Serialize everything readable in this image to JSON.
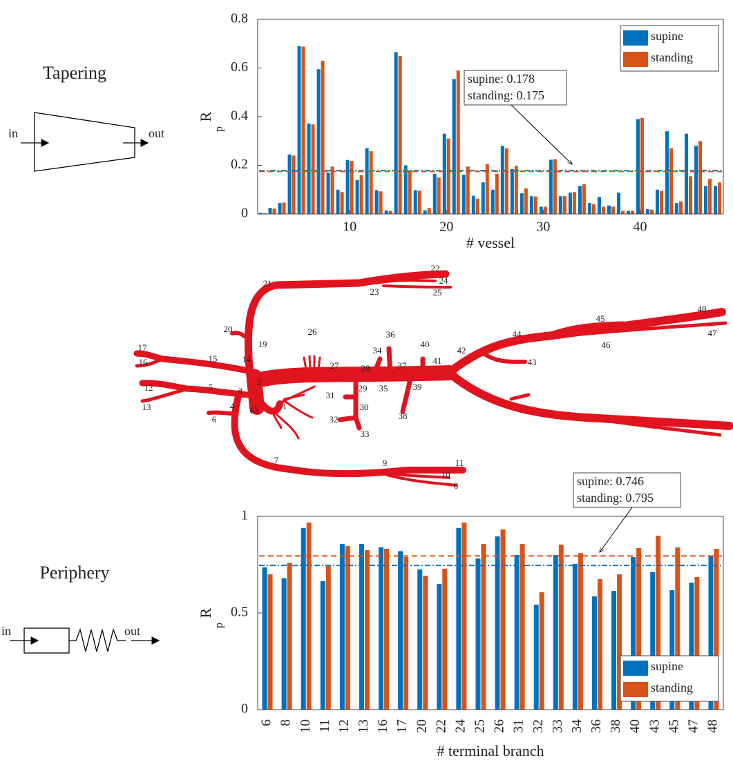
{
  "chart_data": [
    {
      "type": "bar",
      "ylabel": "R",
      "ylabel_sub": "p",
      "xlabel": "# vessel",
      "x": [
        1,
        2,
        3,
        4,
        5,
        6,
        7,
        8,
        9,
        10,
        11,
        12,
        13,
        14,
        15,
        16,
        17,
        18,
        19,
        20,
        21,
        22,
        23,
        24,
        25,
        26,
        27,
        28,
        29,
        30,
        31,
        32,
        33,
        34,
        35,
        36,
        37,
        38,
        39,
        40,
        41,
        42,
        43,
        44,
        45,
        46,
        47,
        48
      ],
      "xlim": [
        0.5,
        48.6
      ],
      "xticks": [
        10,
        20,
        30,
        40
      ],
      "ylim": [
        0,
        0.8
      ],
      "yticks": [
        0,
        0.2,
        0.4,
        0.6,
        0.8
      ],
      "legend": "upper right",
      "series": [
        {
          "name": "supine",
          "color": "#0072bd",
          "mean": 0.178,
          "values": [
            0.005,
            0.025,
            0.045,
            0.245,
            0.69,
            0.372,
            0.595,
            0.17,
            0.1,
            0.222,
            0.14,
            0.27,
            0.098,
            0.015,
            0.665,
            0.2,
            0.098,
            0.015,
            0.165,
            0.33,
            0.555,
            0.162,
            0.075,
            0.13,
            0.1,
            0.28,
            0.185,
            0.085,
            0.073,
            0.03,
            0.223,
            0.073,
            0.088,
            0.115,
            0.045,
            0.07,
            0.035,
            0.088,
            0.013,
            0.39,
            0.02,
            0.1,
            0.34,
            0.045,
            0.33,
            0.28,
            0.115,
            0.115
          ]
        },
        {
          "name": "standing",
          "color": "#d95319",
          "mean": 0.175,
          "values": [
            0.003,
            0.022,
            0.047,
            0.24,
            0.688,
            0.368,
            0.63,
            0.195,
            0.09,
            0.218,
            0.16,
            0.258,
            0.093,
            0.013,
            0.65,
            0.18,
            0.096,
            0.025,
            0.15,
            0.31,
            0.59,
            0.195,
            0.063,
            0.205,
            0.165,
            0.27,
            0.198,
            0.105,
            0.072,
            0.03,
            0.225,
            0.073,
            0.09,
            0.122,
            0.04,
            0.03,
            0.03,
            0.013,
            0.013,
            0.395,
            0.018,
            0.095,
            0.27,
            0.052,
            0.155,
            0.3,
            0.145,
            0.13
          ]
        }
      ],
      "annotation": [
        "supine: 0.178",
        "standing: 0.175"
      ]
    },
    {
      "type": "bar",
      "ylabel": "R",
      "ylabel_sub": "p",
      "xlabel": "# terminal branch",
      "categories": [
        "6",
        "8",
        "10",
        "11",
        "12",
        "13",
        "16",
        "17",
        "20",
        "22",
        "24",
        "25",
        "26",
        "31",
        "32",
        "33",
        "34",
        "36",
        "38",
        "40",
        "43",
        "45",
        "47",
        "48"
      ],
      "ylim": [
        0,
        1
      ],
      "yticks": [
        0,
        0.5,
        1
      ],
      "legend": "lower right",
      "series": [
        {
          "name": "supine",
          "color": "#0072bd",
          "mean": 0.746,
          "values": [
            0.736,
            0.68,
            0.94,
            0.665,
            0.857,
            0.857,
            0.84,
            0.82,
            0.725,
            0.65,
            0.94,
            0.782,
            0.896,
            0.8,
            0.543,
            0.8,
            0.754,
            0.586,
            0.614,
            0.79,
            0.711,
            0.618,
            0.657,
            0.793
          ]
        },
        {
          "name": "standing",
          "color": "#d95319",
          "mean": 0.795,
          "values": [
            0.7,
            0.76,
            0.968,
            0.743,
            0.846,
            0.825,
            0.832,
            0.79,
            0.693,
            0.729,
            0.968,
            0.857,
            0.932,
            0.857,
            0.607,
            0.854,
            0.81,
            0.675,
            0.7,
            0.836,
            0.9,
            0.839,
            0.686,
            0.832
          ]
        }
      ],
      "annotation": [
        "supine: 0.746",
        "standing: 0.795"
      ]
    }
  ],
  "diagram": {
    "tapering": {
      "title": "Tapering",
      "in": "in",
      "out": "out"
    },
    "periphery": {
      "title": "Periphery",
      "in": "in",
      "out": "out"
    },
    "vessel_labels": [
      "21",
      "22",
      "24",
      "23",
      "25",
      "20",
      "19",
      "17",
      "16",
      "15",
      "14",
      "26",
      "27",
      "34",
      "36",
      "40",
      "42",
      "44",
      "45",
      "48",
      "47",
      "46",
      "43",
      "41",
      "37",
      "28",
      "29",
      "35",
      "39",
      "12",
      "5",
      "3",
      "2",
      "13",
      "4",
      "63",
      "1",
      "31",
      "30",
      "32",
      "33",
      "38",
      "6",
      "7",
      "9",
      "11",
      "10",
      "8"
    ]
  }
}
